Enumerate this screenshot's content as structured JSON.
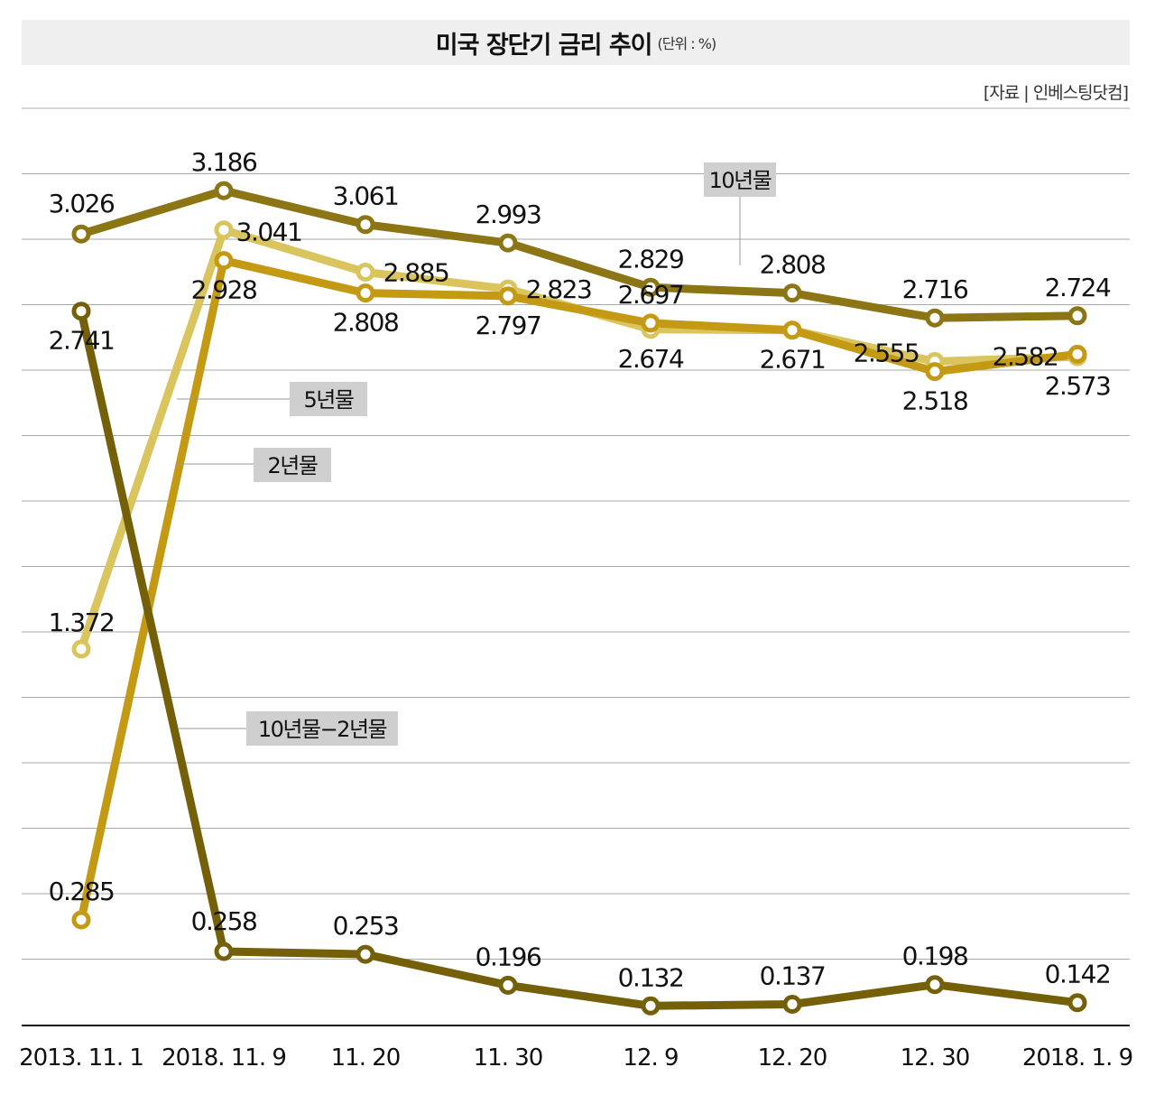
{
  "header": {
    "title": "미국 장단기 금리 추이",
    "unit": "(단위 : %)",
    "source": "[자료 | 인베스팅닷컴]"
  },
  "chart_data": {
    "type": "line",
    "title": "미국 장단기 금리 추이",
    "unit": "%",
    "categories": [
      "2013. 11. 1",
      "2018. 11. 9",
      "11. 20",
      "11. 30",
      "12. 9",
      "12. 20",
      "12. 30",
      "2018. 1. 9"
    ],
    "grid": true,
    "series": [
      {
        "name": "10년물",
        "color": "#8c7514",
        "values": [
          3.026,
          3.186,
          3.061,
          2.993,
          2.829,
          2.808,
          2.716,
          2.724
        ],
        "labels": [
          "3.026",
          "3.186",
          "3.061",
          "2.993",
          "2.829",
          "2.808",
          "2.716",
          "2.724"
        ]
      },
      {
        "name": "5년물",
        "color": "#d9c45e",
        "values": [
          1.372,
          3.041,
          2.885,
          2.823,
          2.674,
          2.671,
          2.555,
          2.573
        ],
        "labels": [
          "1.372",
          "3.041",
          "2.885",
          "2.823",
          "2.674",
          "2.671",
          "2.555",
          "2.573"
        ]
      },
      {
        "name": "2년물",
        "color": "#c49a14",
        "values": [
          0.285,
          2.928,
          2.808,
          2.797,
          2.697,
          2.671,
          2.518,
          2.582
        ],
        "labels": [
          "0.285",
          "2.928",
          "2.808",
          "2.797",
          "2.697",
          "",
          "2.518",
          "2.582"
        ]
      },
      {
        "name": "10년물−2년물",
        "color": "#75600a",
        "values": [
          2.741,
          0.258,
          0.253,
          0.196,
          0.132,
          0.137,
          0.198,
          0.142
        ],
        "labels": [
          "2.741",
          "0.258",
          "0.253",
          "0.196",
          "0.132",
          "0.137",
          "0.198",
          "0.142"
        ]
      }
    ]
  }
}
